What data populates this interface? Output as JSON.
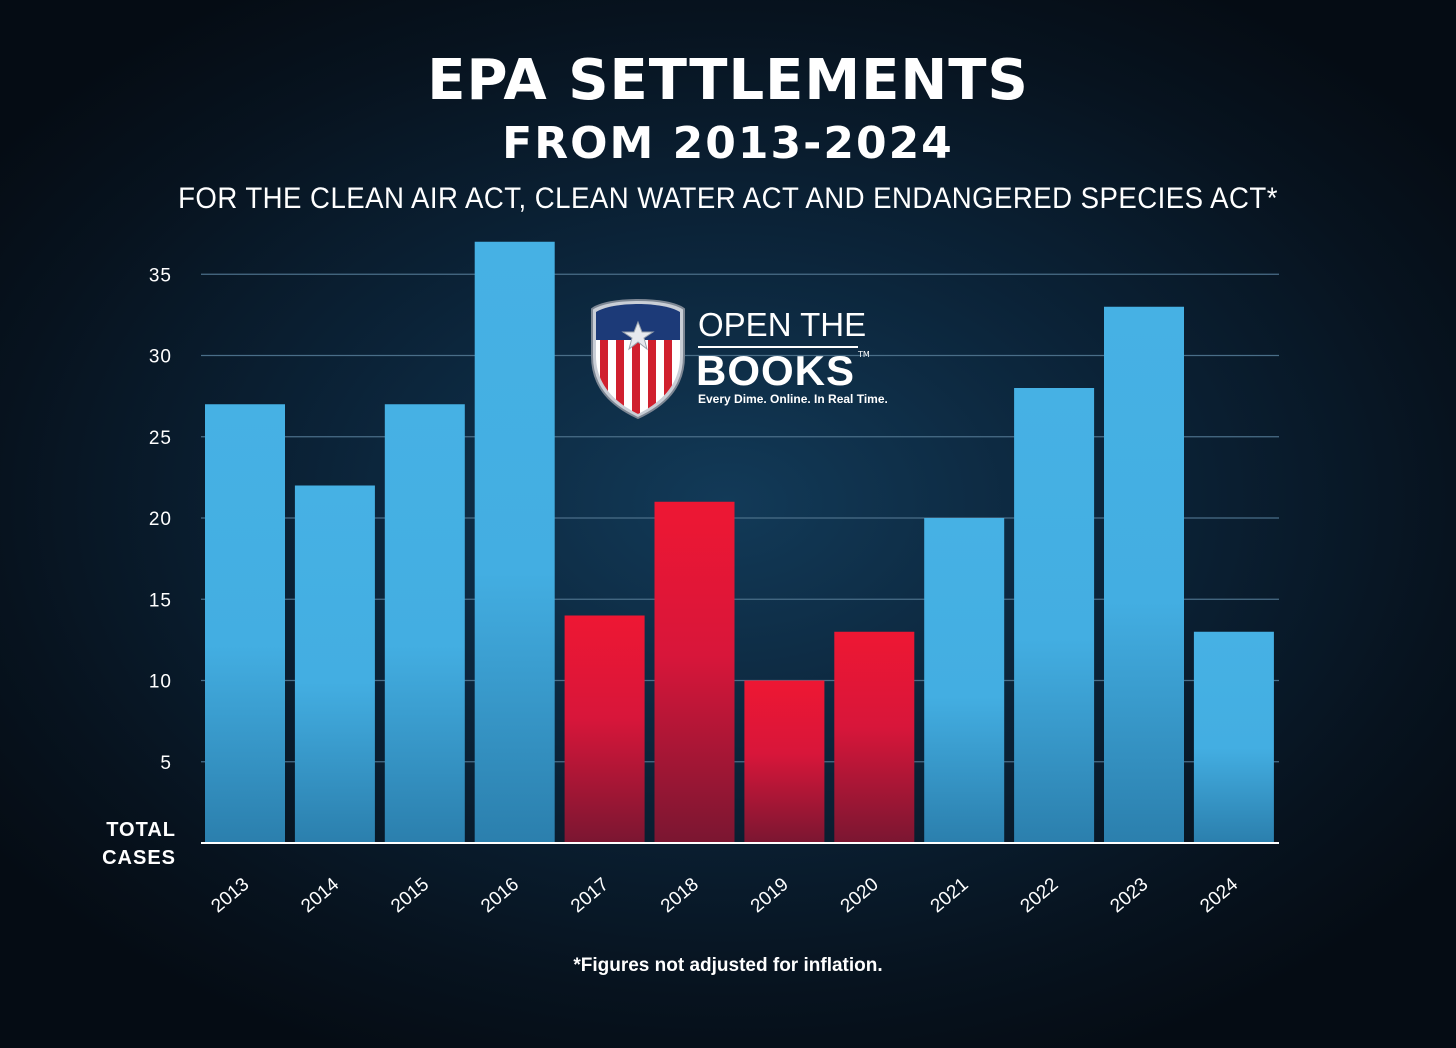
{
  "header": {
    "title": "EPA SETTLEMENTS",
    "title_line2": "FROM 2013-2024",
    "subtitle": "FOR THE CLEAN AIR ACT, CLEAN WATER ACT AND ENDANGERED SPECIES ACT*"
  },
  "footnote": "*Figures not adjusted for inflation.",
  "logo": {
    "line1": "OPEN THE",
    "line2": "BOOKS",
    "tm": "TM",
    "tagline": "Every Dime. Online. In Real Time."
  },
  "chart_data": {
    "type": "bar",
    "title": "EPA SETTLEMENTS FROM 2013-2024",
    "ylabel": "TOTAL CASES",
    "xlabel": "",
    "categories": [
      "2013",
      "2014",
      "2015",
      "2016",
      "2017",
      "2018",
      "2019",
      "2020",
      "2021",
      "2022",
      "2023",
      "2024"
    ],
    "values": [
      27,
      22,
      27,
      37,
      14,
      21,
      10,
      13,
      20,
      28,
      33,
      13
    ],
    "bar_colors": [
      "#46b1e4",
      "#46b1e4",
      "#46b1e4",
      "#46b1e4",
      "#ee1733",
      "#ee1733",
      "#ee1733",
      "#ee1733",
      "#46b1e4",
      "#46b1e4",
      "#46b1e4",
      "#46b1e4"
    ],
    "yticks": [
      5,
      10,
      15,
      20,
      25,
      30,
      35
    ],
    "ylim": [
      0,
      37
    ],
    "grid": true,
    "colors": {
      "blue": "#46b1e4",
      "red": "#ee1733",
      "grid": "#4a6e88"
    }
  }
}
